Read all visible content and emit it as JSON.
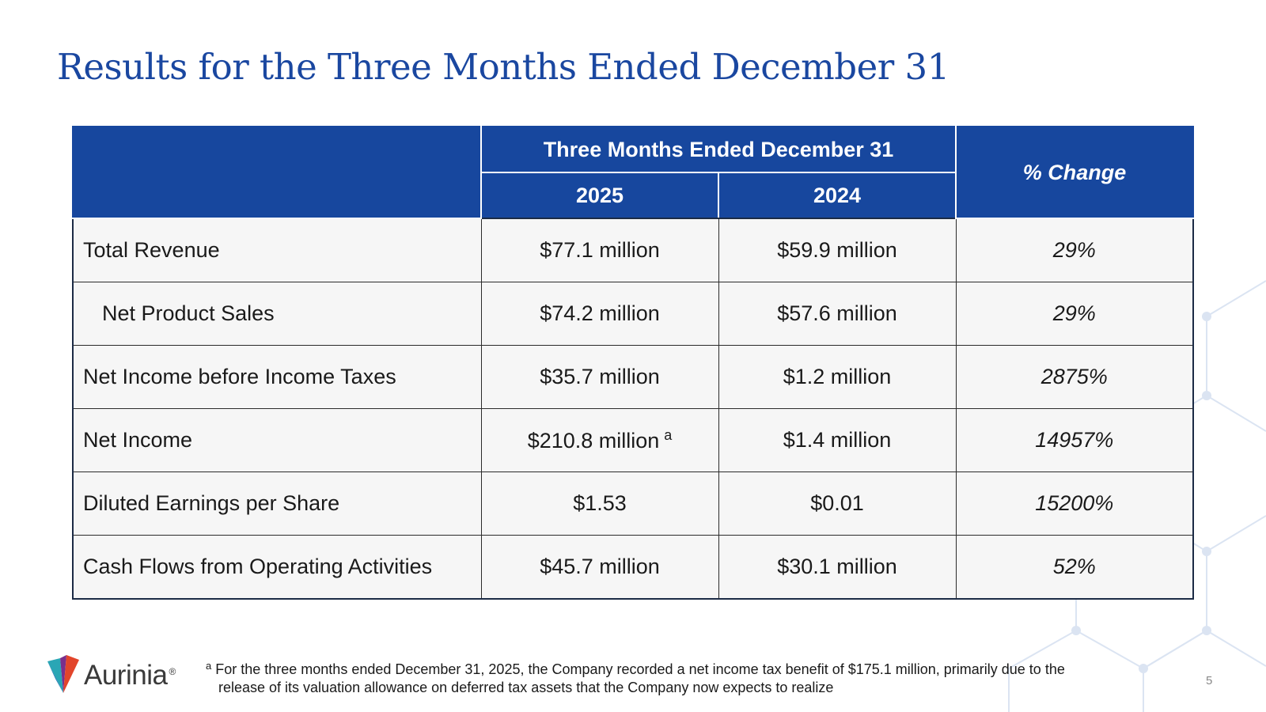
{
  "slide": {
    "title": "Results for the Three Months Ended December 31",
    "page_number": "5"
  },
  "table": {
    "group_header": "Three Months Ended December 31",
    "col_2025": "2025",
    "col_2024": "2024",
    "col_change": "% Change",
    "rows": [
      {
        "label": "Total Revenue",
        "v2025": "$77.1 million",
        "v2024": "$59.9 million",
        "change": "29%"
      },
      {
        "label": "Net Product Sales",
        "v2025": "$74.2 million",
        "v2024": "$57.6 million",
        "change": "29%"
      },
      {
        "label": "Net Income before Income Taxes",
        "v2025": "$35.7 million",
        "v2024": "$1.2 million",
        "change": "2875%"
      },
      {
        "label": "Net Income",
        "v2025": "$210.8 million",
        "v2025_footnote": "a",
        "v2024": "$1.4 million",
        "change": "14957%"
      },
      {
        "label": "Diluted Earnings per Share",
        "v2025": "$1.53",
        "v2024": "$0.01",
        "change": "15200%"
      },
      {
        "label": "Cash Flows from Operating Activities",
        "v2025": "$45.7 million",
        "v2024": "$30.1 million",
        "change": "52%"
      }
    ]
  },
  "footnote": {
    "marker": "a",
    "line1": "For the three months ended December 31, 2025, the Company recorded a net income tax benefit of $175.1 million, primarily due to the",
    "line2": "release of its valuation allowance on deferred tax assets that the Company now expects to realize"
  },
  "logo": {
    "name": "Aurinia",
    "registered_mark": "®",
    "icon": "aurinia-v-logo-icon"
  },
  "colors": {
    "title": "#1a47a0",
    "header_bg": "#17479e",
    "row_bg": "#f6f6f6",
    "pattern": "#dbe4f2"
  }
}
